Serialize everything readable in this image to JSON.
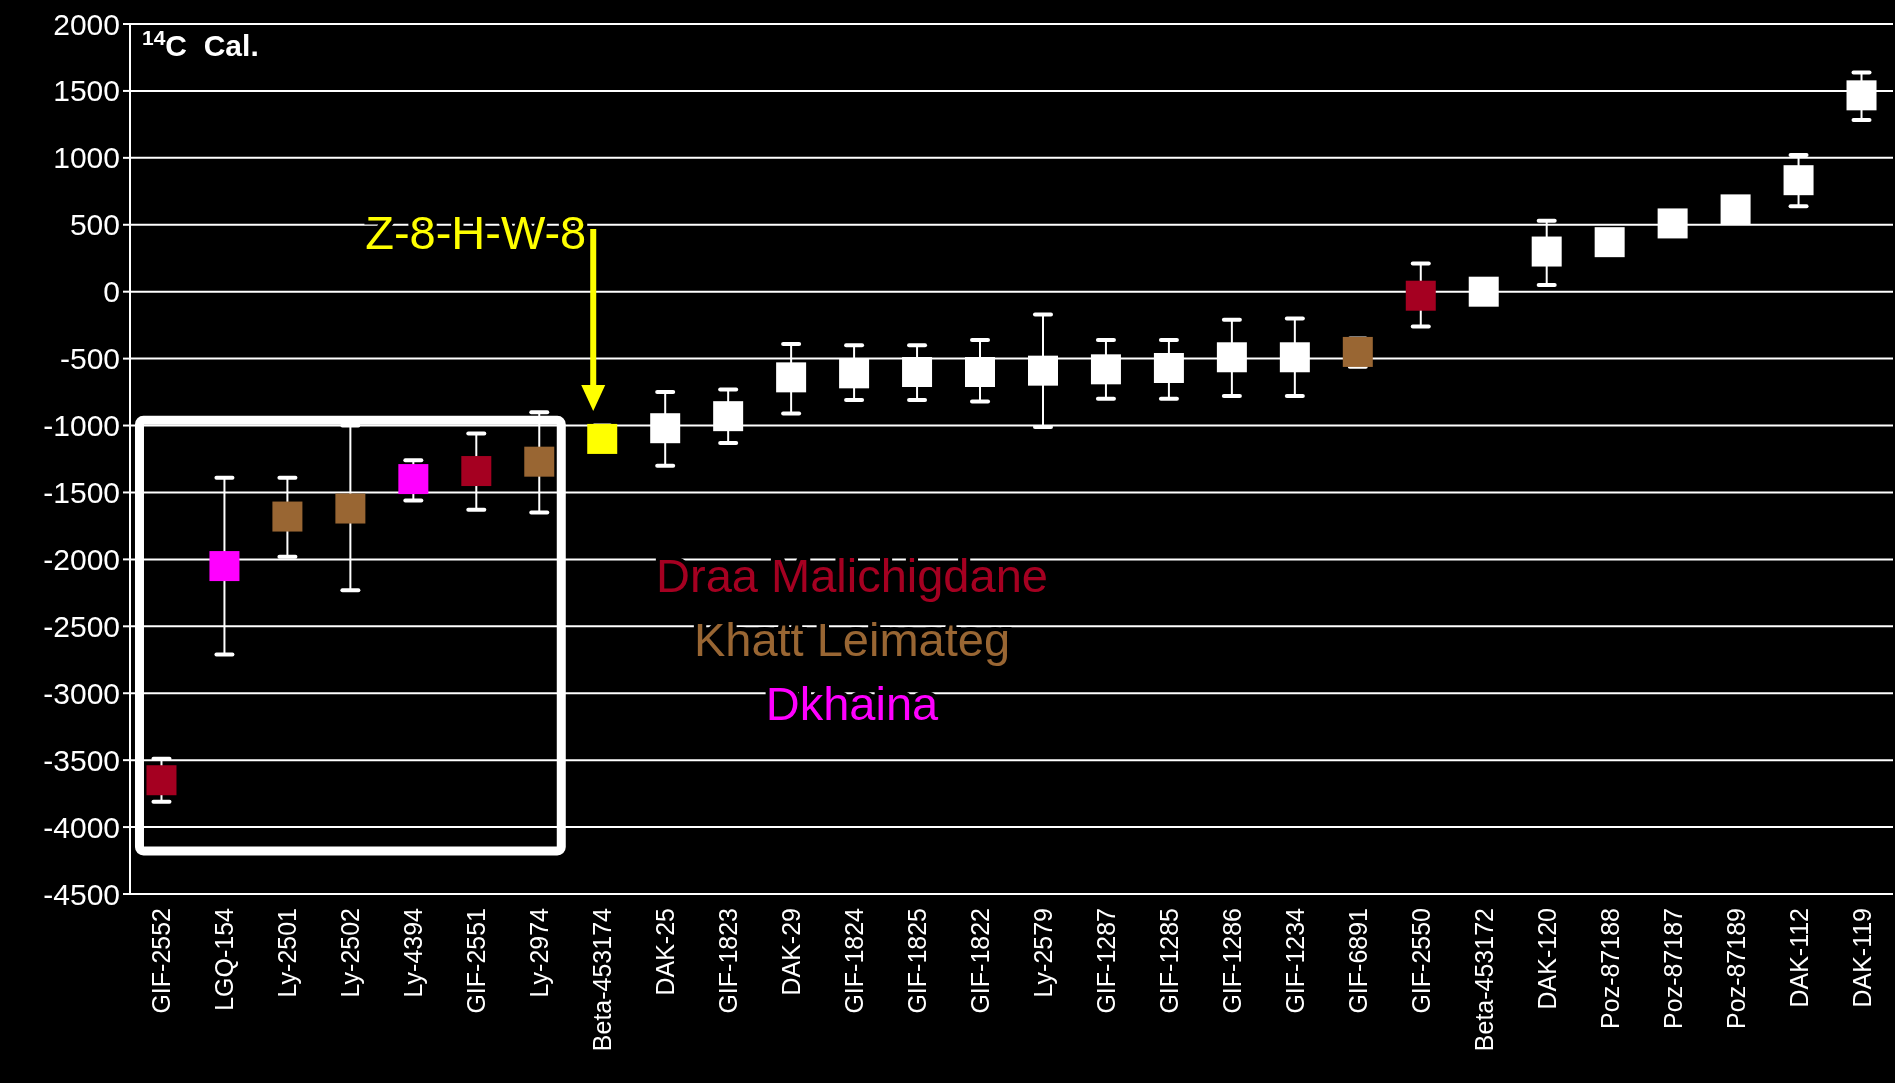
{
  "chart_data": {
    "type": "scatter",
    "ylabel": "$^{14}$C  Cal.",
    "categories": [
      "GIF-2552",
      "LGQ-154",
      "Ly-2501",
      "Ly-2502",
      "Ly-4394",
      "GIF-2551",
      "Ly-2974",
      "Beta-453174",
      "DAK-25",
      "GIF-1823",
      "DAK-29",
      "GIF-1824",
      "GIF-1825",
      "GIF-1822",
      "Ly-2579",
      "GIF-1287",
      "GIF-1285",
      "GIF-1286",
      "GIF-1234",
      "GIF-6891",
      "GIF-2550",
      "Beta-453172",
      "DAK-120",
      "Poz-87188",
      "Poz-87187",
      "Poz-87189",
      "DAK-112",
      "DAK-119"
    ],
    "series": [
      {
        "name": "Draa Malichigdane",
        "color": "#a50021",
        "values": [
          -3650,
          null,
          null,
          null,
          null,
          -1340,
          null,
          null,
          null,
          null,
          null,
          null,
          null,
          null,
          null,
          null,
          null,
          null,
          null,
          null,
          -30,
          null,
          null,
          null,
          null,
          null,
          null,
          null
        ],
        "errors": [
          [
            -3810,
            -3490
          ],
          null,
          null,
          null,
          null,
          [
            -1630,
            -1060
          ],
          null,
          null,
          null,
          null,
          null,
          null,
          null,
          null,
          null,
          null,
          null,
          null,
          null,
          null,
          [
            -260,
            210
          ],
          null,
          null,
          null,
          null,
          null,
          null,
          null
        ]
      },
      {
        "name": "Khatt Leimateg",
        "color": "#996633",
        "values": [
          null,
          null,
          -1680,
          -1620,
          null,
          null,
          -1270,
          null,
          null,
          null,
          null,
          null,
          null,
          null,
          null,
          null,
          null,
          null,
          null,
          -450,
          null,
          null,
          null,
          null,
          null,
          null,
          null,
          null
        ],
        "errors": [
          null,
          null,
          [
            -1980,
            -1390
          ],
          [
            -2230,
            -1000
          ],
          null,
          null,
          [
            -1650,
            -900
          ],
          null,
          null,
          null,
          null,
          null,
          null,
          null,
          null,
          null,
          null,
          null,
          null,
          [
            -560,
            -350
          ],
          null,
          null,
          null,
          null,
          null,
          null,
          null,
          null
        ]
      },
      {
        "name": "Dkhaina",
        "color": "#ff00ff",
        "values": [
          null,
          -2050,
          null,
          null,
          -1400,
          null,
          null,
          null,
          null,
          null,
          null,
          null,
          null,
          null,
          null,
          null,
          null,
          null,
          null,
          null,
          null,
          null,
          null,
          null,
          null,
          null,
          null,
          null
        ],
        "errors": [
          null,
          [
            -2710,
            -1390
          ],
          null,
          null,
          [
            -1560,
            -1260
          ],
          null,
          null,
          null,
          null,
          null,
          null,
          null,
          null,
          null,
          null,
          null,
          null,
          null,
          null,
          null,
          null,
          null,
          null,
          null,
          null,
          null,
          null,
          null
        ]
      },
      {
        "color": "#ffff00",
        "values": [
          null,
          null,
          null,
          null,
          null,
          null,
          null,
          -1100,
          null,
          null,
          null,
          null,
          null,
          null,
          null,
          null,
          null,
          null,
          null,
          null,
          null,
          null,
          null,
          null,
          null,
          null,
          null,
          null
        ],
        "errors": [
          null,
          null,
          null,
          null,
          null,
          null,
          null,
          [
            -1100,
            -1000
          ],
          null,
          null,
          null,
          null,
          null,
          null,
          null,
          null,
          null,
          null,
          null,
          null,
          null,
          null,
          null,
          null,
          null,
          null,
          null,
          null
        ]
      },
      {
        "color": "#ffffff",
        "values": [
          null,
          null,
          null,
          null,
          null,
          null,
          null,
          null,
          -1020,
          -930,
          -640,
          -610,
          -600,
          -600,
          -590,
          -580,
          -570,
          -490,
          -490,
          null,
          null,
          0,
          300,
          370,
          510,
          615,
          833,
          1467
        ],
        "errors": [
          null,
          null,
          null,
          null,
          null,
          null,
          null,
          null,
          [
            -1300,
            -750
          ],
          [
            -1130,
            -730
          ],
          [
            -910,
            -390
          ],
          [
            -810,
            -400
          ],
          [
            -810,
            -400
          ],
          [
            -820,
            -360
          ],
          [
            -1010,
            -170
          ],
          [
            -800,
            -360
          ],
          [
            -800,
            -360
          ],
          [
            -780,
            -210
          ],
          [
            -780,
            -200
          ],
          null,
          null,
          null,
          [
            50,
            530
          ],
          null,
          null,
          null,
          [
            639,
            1022
          ],
          [
            1282,
            1637
          ]
        ]
      }
    ],
    "ylim": [
      -4500,
      2000
    ],
    "yticks": [
      -4500,
      -4000,
      -3500,
      -3000,
      -2500,
      -2000,
      -1500,
      -1000,
      -500,
      0,
      500,
      1000,
      1500,
      2000
    ],
    "grid": "y",
    "marker": "square",
    "legend": "center",
    "annotations": [
      "Z-8-H-W-8"
    ]
  }
}
